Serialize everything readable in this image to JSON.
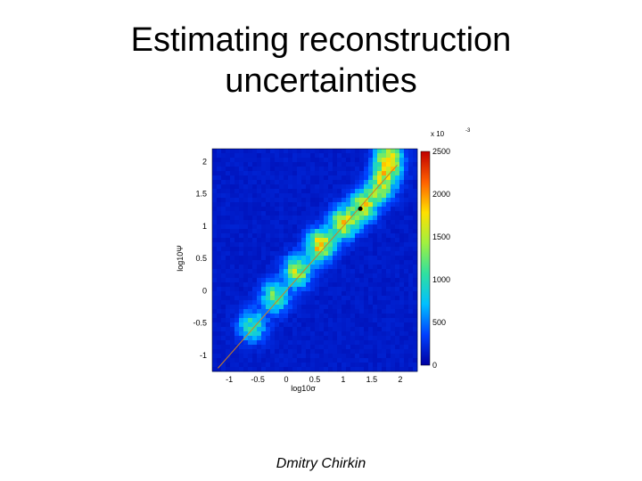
{
  "slide": {
    "title_line1": "Estimating reconstruction",
    "title_line2": "uncertainties",
    "author": "Dmitry Chirkin"
  },
  "chart_data": {
    "type": "heatmap",
    "title": "",
    "xlabel": "log10σ",
    "ylabel": "log10Ψ",
    "xlim": [
      -1.3,
      2.3
    ],
    "ylim": [
      -1.25,
      2.2
    ],
    "x_ticks": [
      "-1",
      "-0.5",
      "0",
      "0.5",
      "1",
      "1.5",
      "2"
    ],
    "x_tick_values": [
      -1,
      -0.5,
      0,
      0.5,
      1,
      1.5,
      2
    ],
    "y_ticks": [
      "-1",
      "-0.5",
      "0",
      "0.5",
      "1",
      "1.5",
      "2"
    ],
    "y_tick_values": [
      -1,
      -0.5,
      0,
      0.5,
      1,
      1.5,
      2
    ],
    "colorbar": {
      "multiplier": "x 10",
      "exponent": "-3",
      "ticks": [
        "0",
        "500",
        "1000",
        "1500",
        "2000",
        "2500"
      ],
      "tick_values": [
        0,
        500,
        1000,
        1500,
        2000,
        2500
      ],
      "range": [
        0,
        2500
      ],
      "colormap": [
        "#0000a0",
        "#0040ff",
        "#00c0ff",
        "#30e0a0",
        "#a0f040",
        "#ffe000",
        "#ff6000",
        "#c00000"
      ]
    },
    "diagonal_line": {
      "x": [
        -1.2,
        1.95
      ],
      "y": [
        -1.2,
        1.95
      ],
      "color": "#d08020"
    },
    "marker": {
      "x": 1.3,
      "y": 1.27,
      "color": "#000000"
    },
    "background_value": 150,
    "distribution": {
      "ridge": [
        {
          "x": -0.6,
          "y": -0.55,
          "value": 900
        },
        {
          "x": -0.2,
          "y": -0.1,
          "value": 1100
        },
        {
          "x": 0.2,
          "y": 0.3,
          "value": 1300
        },
        {
          "x": 0.6,
          "y": 0.7,
          "value": 1600
        },
        {
          "x": 1.0,
          "y": 1.05,
          "value": 1500
        },
        {
          "x": 1.35,
          "y": 1.3,
          "value": 1400
        },
        {
          "x": 1.65,
          "y": 1.6,
          "value": 1200
        },
        {
          "x": 1.8,
          "y": 1.9,
          "value": 1100
        },
        {
          "x": 1.8,
          "y": 2.1,
          "value": 1000
        }
      ]
    }
  }
}
